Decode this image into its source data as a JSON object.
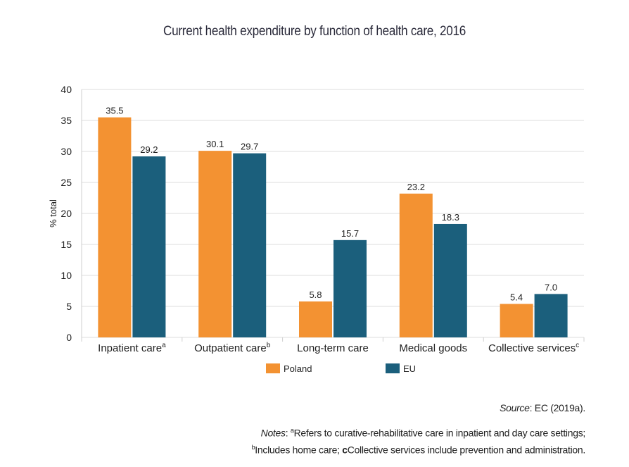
{
  "chart_data": {
    "type": "bar",
    "title": "Current health expenditure by function of health care, 2016",
    "ylabel": "% total",
    "xlabel": "",
    "ylim": [
      0,
      40
    ],
    "yticks": [
      0,
      5,
      10,
      15,
      20,
      25,
      30,
      35,
      40
    ],
    "grid": true,
    "legend": "bottom",
    "categories": [
      "Inpatient care",
      "Outpatient care",
      "Long-term care",
      "Medical goods",
      "Collective services"
    ],
    "category_superscripts": [
      "a",
      "b",
      "",
      "",
      "c"
    ],
    "series": [
      {
        "name": "Poland",
        "color": "#F39232",
        "values": [
          35.5,
          30.1,
          5.8,
          23.2,
          5.4
        ],
        "labels": [
          "35.5",
          "30.1",
          "5.8",
          "23.2",
          "5.4"
        ]
      },
      {
        "name": "EU",
        "color": "#1B5F7C",
        "values": [
          29.2,
          29.7,
          15.7,
          18.3,
          7.0
        ],
        "labels": [
          "29.2",
          "29.7",
          "15.7",
          "18.3",
          "7.0"
        ]
      }
    ]
  },
  "source": {
    "label": "Source",
    "text": ": EC (2019a)."
  },
  "notes": {
    "label": "Notes",
    "a_mark": "a",
    "a_text": "Refers to curative-rehabilitative care in inpatient and day care settings;",
    "b_mark": "b",
    "b_text": "Includes home care; ",
    "c_mark": "c",
    "c_text": "Collective services include prevention and administration."
  }
}
